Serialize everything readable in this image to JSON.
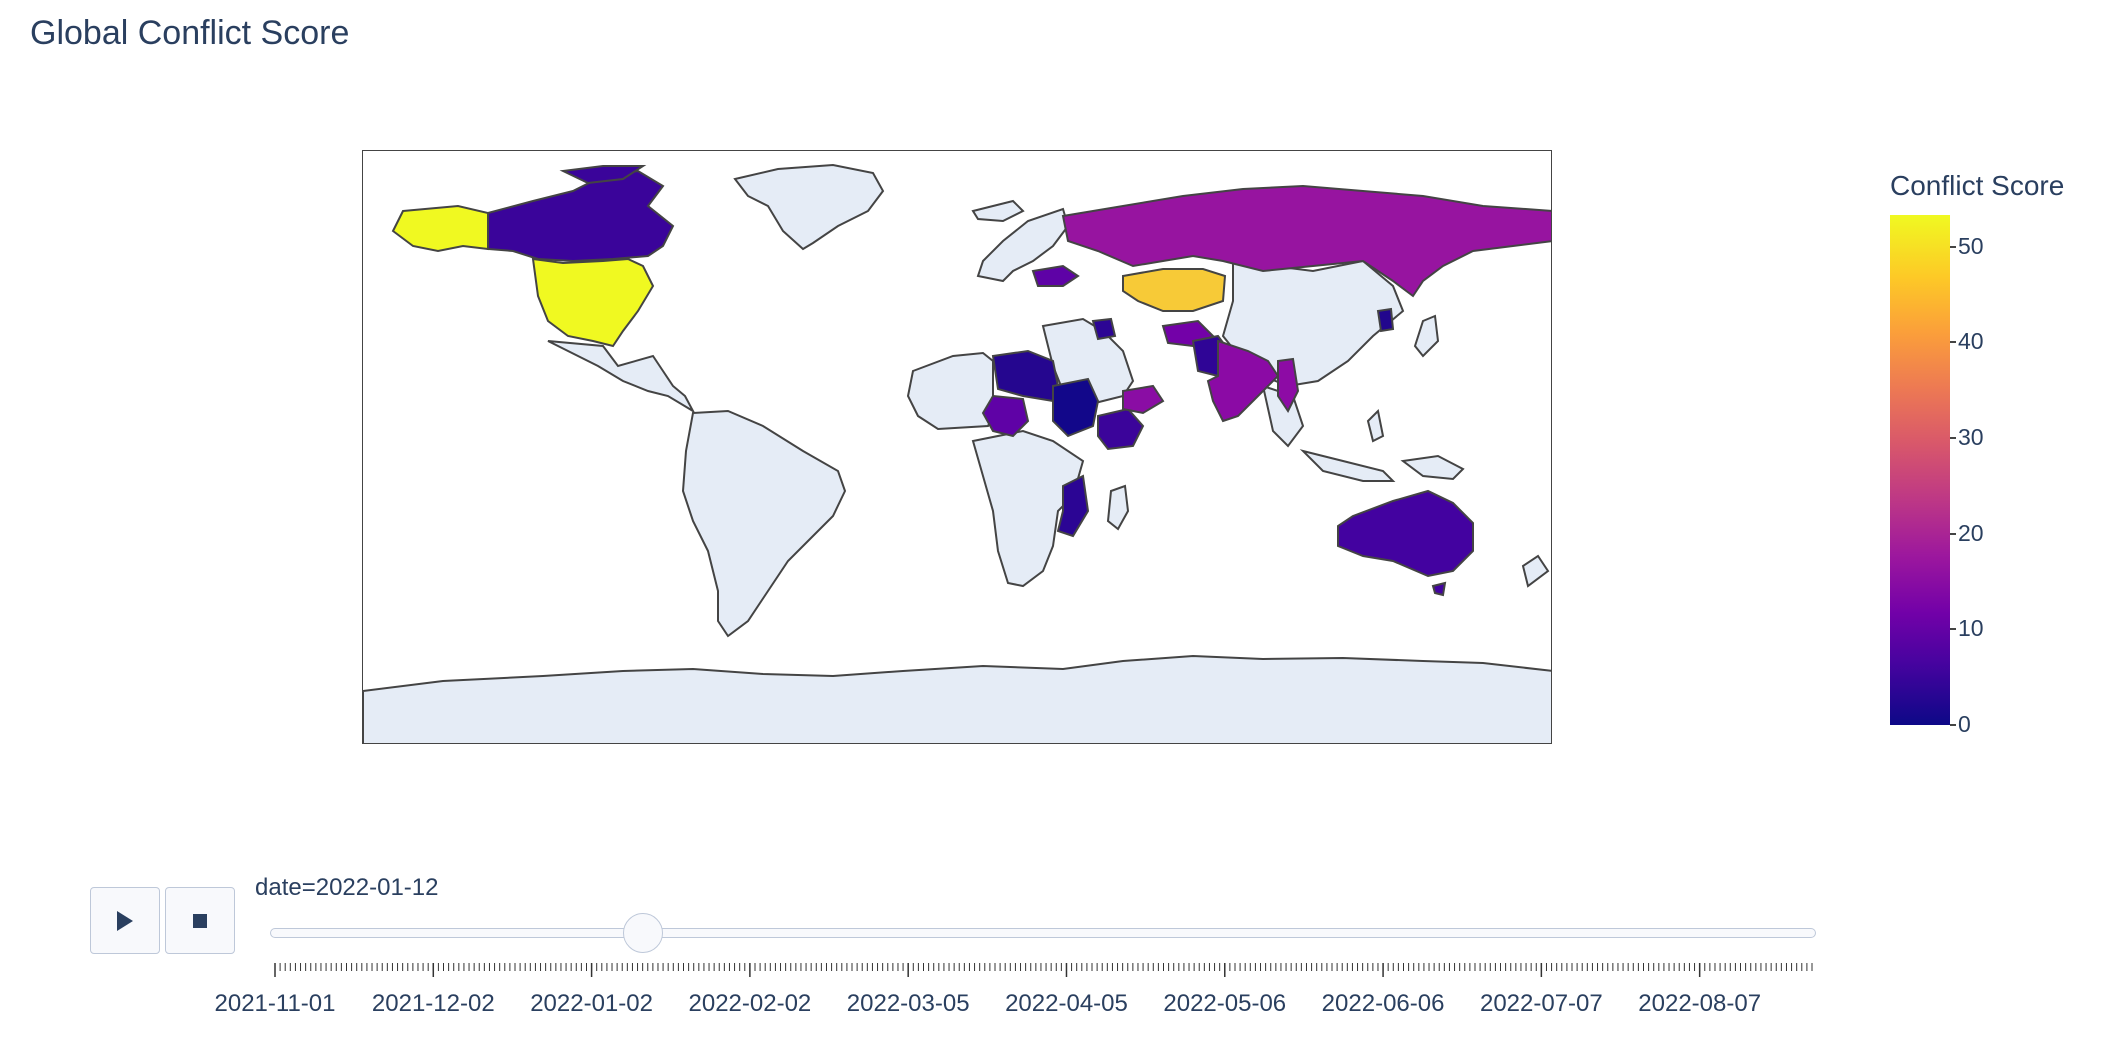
{
  "title": "Global Conflict Score",
  "colorbar": {
    "title": "Conflict Score",
    "ticks": [
      "50",
      "40",
      "30",
      "20",
      "10",
      "0"
    ],
    "min": 0,
    "max": 53
  },
  "slider": {
    "current_label": "date=2022-01-12",
    "current_date": "2022-01-12",
    "start_date": "2021-11-01",
    "end_date": "2022-08-29",
    "tick_labels": [
      "2021-11-01",
      "2021-12-02",
      "2022-01-02",
      "2022-02-02",
      "2022-03-05",
      "2022-04-05",
      "2022-05-06",
      "2022-06-06",
      "2022-07-07",
      "2022-08-07"
    ]
  },
  "controls": {
    "play_icon": "play-icon",
    "stop_icon": "stop-icon"
  },
  "colors": {
    "land_no_data": "#e5ecf6",
    "border": "#444444",
    "text": "#2a3f5f"
  },
  "map_data": {
    "projection": "equirectangular",
    "colorscale": "Plasma",
    "regions": [
      {
        "name": "United States",
        "value": 53
      },
      {
        "name": "Alaska (United States)",
        "value": 53
      },
      {
        "name": "Kazakhstan",
        "value": 48
      },
      {
        "name": "Russia",
        "value": 17
      },
      {
        "name": "India",
        "value": 16
      },
      {
        "name": "Canada",
        "value": 5
      },
      {
        "name": "Australia",
        "value": 6
      },
      {
        "name": "Libya",
        "value": 3
      },
      {
        "name": "Sudan",
        "value": 1
      },
      {
        "name": "Nigeria",
        "value": 7
      },
      {
        "name": "Ethiopia",
        "value": 5
      },
      {
        "name": "Mozambique",
        "value": 3
      },
      {
        "name": "Yemen",
        "value": 12
      },
      {
        "name": "Pakistan",
        "value": 4
      },
      {
        "name": "Afghanistan",
        "value": 14
      },
      {
        "name": "Myanmar",
        "value": 15
      },
      {
        "name": "Ukraine",
        "value": 10
      },
      {
        "name": "Syria",
        "value": 3
      },
      {
        "name": "North Korea",
        "value": 2
      }
    ]
  }
}
